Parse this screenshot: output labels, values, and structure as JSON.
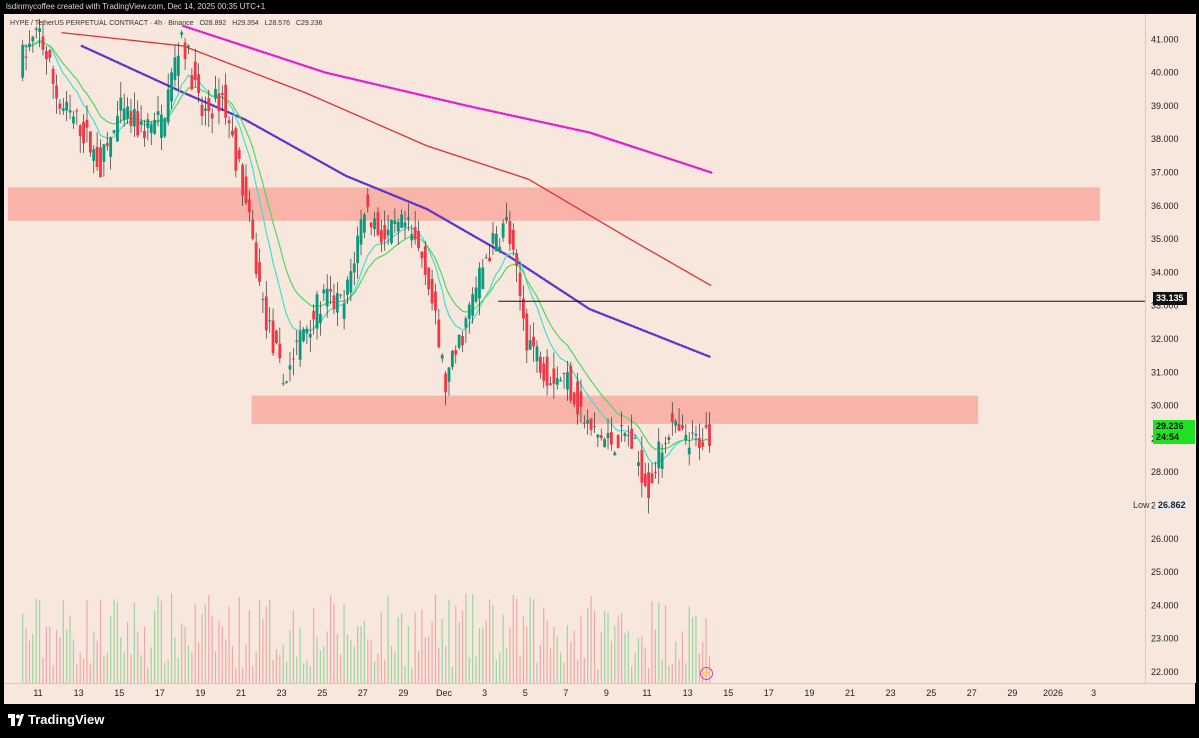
{
  "credit": "lsdinmycoffee created with TradingView.com, Dec 14, 2025 00:35 UTC+1",
  "legend": {
    "symbol": "HYPE / TetherUS PERPETUAL CONTRACT · 4h · Binance",
    "open": "O28.892",
    "high": "H29.354",
    "low": "L28.576",
    "close": "C29.236"
  },
  "brand": "TradingView",
  "labels": {
    "hline_value": "33.135",
    "last_price": "29.236",
    "countdown": "24:54",
    "low_text": "Low",
    "low_value": "26.862"
  },
  "colors": {
    "background": "#f8e7dd",
    "up_candle": "#089981",
    "down_candle": "#f23645",
    "zone_fill": "#f7a79c",
    "ema_fast": "#4cd964",
    "ema_mid": "#40e0d0",
    "ma_red": "#e03030",
    "ma_purple": "#5b35c8",
    "ma_magenta": "#e020d0",
    "volume_up": "#9bd6a0",
    "volume_down": "#f2a7a7"
  },
  "chart_data": {
    "type": "candlestick",
    "timeframe": "4h",
    "y_ticks": [
      "41.000",
      "40.000",
      "39.000",
      "38.000",
      "37.000",
      "36.000",
      "35.000",
      "34.000",
      "33.000",
      "32.000",
      "31.000",
      "30.000",
      "29.000",
      "28.000",
      "27.000",
      "26.000",
      "25.000",
      "24.000",
      "23.000",
      "22.000"
    ],
    "x_ticks": [
      "11",
      "13",
      "15",
      "17",
      "19",
      "21",
      "23",
      "25",
      "27",
      "29",
      "Dec",
      "3",
      "5",
      "7",
      "9",
      "11",
      "13",
      "15",
      "17",
      "19",
      "21",
      "23",
      "25",
      "27",
      "29",
      "2026",
      "3"
    ],
    "ylim": [
      21.6,
      41.5
    ],
    "grid": false,
    "resistance_zones": [
      {
        "low": 35.55,
        "high": 36.55,
        "from": "Nov 10",
        "to": "Jan 2"
      },
      {
        "low": 29.45,
        "high": 30.3,
        "from": "Nov 22",
        "to": "Dec 27"
      }
    ],
    "horizontal_line": {
      "value": 33.135,
      "from": "Dec 4"
    },
    "low_marker": 26.862,
    "last_close": 29.236,
    "close_path": [
      {
        "date": "Nov 10",
        "close": 40.3
      },
      {
        "date": "Nov 11",
        "close": 41.2
      },
      {
        "date": "Nov 12",
        "close": 39.0
      },
      {
        "date": "Nov 13",
        "close": 38.4
      },
      {
        "date": "Nov 14",
        "close": 37.2
      },
      {
        "date": "Nov 15",
        "close": 38.8
      },
      {
        "date": "Nov 16",
        "close": 38.3
      },
      {
        "date": "Nov 17",
        "close": 38.5
      },
      {
        "date": "Nov 18",
        "close": 41.2
      },
      {
        "date": "Nov 19",
        "close": 38.7
      },
      {
        "date": "Nov 20",
        "close": 39.3
      },
      {
        "date": "Nov 21",
        "close": 36.6
      },
      {
        "date": "Nov 22",
        "close": 33.0
      },
      {
        "date": "Nov 23",
        "close": 30.7
      },
      {
        "date": "Nov 24",
        "close": 32.3
      },
      {
        "date": "Nov 25",
        "close": 33.2
      },
      {
        "date": "Nov 26",
        "close": 33.0
      },
      {
        "date": "Nov 27",
        "close": 36.0
      },
      {
        "date": "Nov 28",
        "close": 35.0
      },
      {
        "date": "Nov 29",
        "close": 35.4
      },
      {
        "date": "Nov 30",
        "close": 34.3
      },
      {
        "date": "Dec 1",
        "close": 30.6
      },
      {
        "date": "Dec 2",
        "close": 32.5
      },
      {
        "date": "Dec 3",
        "close": 34.5
      },
      {
        "date": "Dec 4",
        "close": 35.5
      },
      {
        "date": "Dec 5",
        "close": 32.1
      },
      {
        "date": "Dec 6",
        "close": 31.0
      },
      {
        "date": "Dec 7",
        "close": 30.8
      },
      {
        "date": "Dec 8",
        "close": 29.3
      },
      {
        "date": "Dec 9",
        "close": 28.9
      },
      {
        "date": "Dec 10",
        "close": 29.1
      },
      {
        "date": "Dec 11",
        "close": 27.6
      },
      {
        "date": "Dec 12",
        "close": 29.4
      },
      {
        "date": "Dec 13",
        "close": 28.8
      },
      {
        "date": "Dec 14",
        "close": 29.236
      }
    ],
    "moving_averages": [
      {
        "color": "#e020d0",
        "style": "dotted",
        "points": [
          {
            "date": "Nov 18",
            "v": 41.4
          },
          {
            "date": "Nov 25",
            "v": 40.0
          },
          {
            "date": "Dec 2",
            "v": 39.0
          },
          {
            "date": "Dec 8",
            "v": 38.2
          },
          {
            "date": "Dec 14",
            "v": 37.0
          }
        ]
      },
      {
        "color": "#e03030",
        "style": "solid",
        "points": [
          {
            "date": "Nov 12",
            "v": 41.2
          },
          {
            "date": "Nov 18",
            "v": 40.8
          },
          {
            "date": "Nov 24",
            "v": 39.4
          },
          {
            "date": "Nov 30",
            "v": 37.8
          },
          {
            "date": "Dec 5",
            "v": 36.8
          },
          {
            "date": "Dec 10",
            "v": 35.0
          },
          {
            "date": "Dec 14",
            "v": 33.6
          }
        ]
      },
      {
        "color": "#5b35c8",
        "style": "dotted",
        "points": [
          {
            "date": "Nov 13",
            "v": 40.8
          },
          {
            "date": "Nov 18",
            "v": 39.4
          },
          {
            "date": "Nov 21",
            "v": 38.6
          },
          {
            "date": "Nov 26",
            "v": 36.9
          },
          {
            "date": "Nov 30",
            "v": 35.9
          },
          {
            "date": "Dec 4",
            "v": 34.5
          },
          {
            "date": "Dec 8",
            "v": 32.9
          },
          {
            "date": "Dec 14",
            "v": 31.45
          }
        ]
      }
    ]
  }
}
